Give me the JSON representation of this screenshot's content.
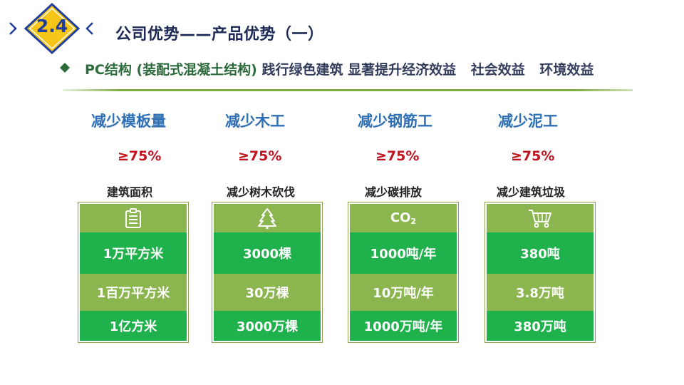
{
  "header": {
    "section_number": "2.4",
    "title": "公司优势——产品优势（一）",
    "subtitle_main": "PC结构 (装配式混凝土结构)",
    "subtitle_benefits": [
      "践行绿色建筑 显著提升经济效益",
      "社会效益",
      "环境效益"
    ]
  },
  "colors": {
    "accent_green": "#1fb14c",
    "light_green": "#8bb54e",
    "title_blue": "#2f6fb3",
    "percent_red": "#c1121f",
    "badge_yellow": "#f5c518",
    "badge_border": "#1f3f9f"
  },
  "columns": [
    {
      "title": "减少模板量",
      "percent": "≥75%",
      "caption": "建筑面积",
      "icon": "clipboard-icon",
      "values": [
        "1万平方米",
        "1百万平方米",
        "1亿方米"
      ]
    },
    {
      "title": "减少木工",
      "percent": "≥75%",
      "caption": "减少树木砍伐",
      "icon": "tree-icon",
      "values": [
        "3000棵",
        "30万棵",
        "3000万棵"
      ]
    },
    {
      "title": "减少钢筋工",
      "percent": "≥75%",
      "caption": "减少碳排放",
      "icon": "co2-icon",
      "icon_text": "CO",
      "icon_sub": "2",
      "values": [
        "1000吨/年",
        "10万吨/年",
        "1000万吨/年"
      ]
    },
    {
      "title": "减少泥工",
      "percent": "≥75%",
      "caption": "减少建筑垃圾",
      "icon": "cart-icon",
      "values": [
        "380吨",
        "3.8万吨",
        "380万吨"
      ]
    }
  ]
}
